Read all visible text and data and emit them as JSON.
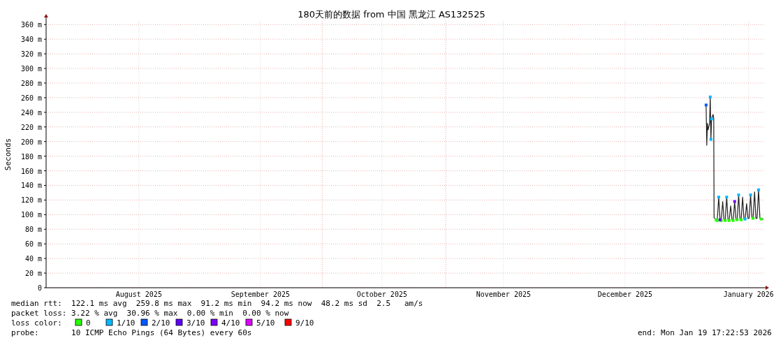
{
  "chart_data": {
    "type": "line",
    "title": "180天前的数据 from 中国 黑龙江 AS132525",
    "ylabel": "Seconds",
    "xlim": [
      "2025-07-23T17:22",
      "2026-01-19T17:22"
    ],
    "xticks": [
      {
        "value": "2025-08-16",
        "label": "August 2025"
      },
      {
        "value": "2025-09-15T12:00",
        "label": "September 2025"
      },
      {
        "value": "2025-10-16",
        "label": "October 2025"
      },
      {
        "value": "2025-11-15T12:00",
        "label": "November 2025"
      },
      {
        "value": "2025-12-16",
        "label": "December 2025"
      },
      {
        "value": "2026-01-16",
        "label": "January 2026"
      }
    ],
    "ylim": [
      0,
      365
    ],
    "yticks": [
      0,
      {
        "value": 20,
        "label": "20 m"
      },
      {
        "value": 40,
        "label": "40 m"
      },
      {
        "value": 60,
        "label": "60 m"
      },
      {
        "value": 80,
        "label": "80 m"
      },
      {
        "value": 100,
        "label": "100 m"
      },
      {
        "value": 120,
        "label": "120 m"
      },
      {
        "value": 140,
        "label": "140 m"
      },
      {
        "value": 160,
        "label": "160 m"
      },
      {
        "value": 180,
        "label": "180 m"
      },
      {
        "value": 200,
        "label": "200 m"
      },
      {
        "value": 220,
        "label": "220 m"
      },
      {
        "value": 240,
        "label": "240 m"
      },
      {
        "value": 260,
        "label": "260 m"
      },
      {
        "value": 280,
        "label": "280 m"
      },
      {
        "value": 300,
        "label": "300 m"
      },
      {
        "value": 320,
        "label": "320 m"
      },
      {
        "value": 340,
        "label": "340 m"
      },
      {
        "value": 360,
        "label": "360 m"
      }
    ],
    "grid": true,
    "legend": "bottom",
    "legend_title": "loss color:",
    "ref_lines": [
      {
        "axis": "x",
        "value": "2025-10-01",
        "color": "#f0a0a0",
        "line_style": "dotted"
      },
      {
        "axis": "x",
        "value": "2025-11-01",
        "color": "#f0a0a0",
        "line_style": "dotted"
      }
    ],
    "series": [
      {
        "color": "#202020",
        "marker": "none",
        "x": [
          "2026-01-05T08:00",
          "2026-01-05T12:00",
          "2026-01-05T16:00",
          "2026-01-05T20:00",
          "2026-01-06T05:00",
          "2026-01-06T09:00",
          "2026-01-06T13:00",
          "2026-01-06T17:00",
          "2026-01-07T02:00",
          "2026-01-07T06:00",
          "2026-01-07T08:00",
          "2026-01-07T20:00",
          "2026-01-08T03:00",
          "2026-01-08T12:00",
          "2026-01-08T20:00",
          "2026-01-09T03:00",
          "2026-01-09T12:00",
          "2026-01-09T20:00",
          "2026-01-10T03:00",
          "2026-01-10T12:00",
          "2026-01-10T20:00",
          "2026-01-11T03:00",
          "2026-01-11T12:00",
          "2026-01-11T20:00",
          "2026-01-12T03:00",
          "2026-01-12T12:00",
          "2026-01-12T20:00",
          "2026-01-13T03:00",
          "2026-01-13T12:00",
          "2026-01-13T20:00",
          "2026-01-14T03:00",
          "2026-01-14T12:00",
          "2026-01-14T20:00",
          "2026-01-15T03:00",
          "2026-01-15T12:00",
          "2026-01-15T20:00",
          "2026-01-16T03:00",
          "2026-01-16T12:00",
          "2026-01-16T20:00",
          "2026-01-17T03:00",
          "2026-01-17T12:00",
          "2026-01-17T20:00",
          "2026-01-18T03:00",
          "2026-01-18T12:00",
          "2026-01-18T20:00",
          "2026-01-19T03:00",
          "2026-01-19T17:00"
        ],
        "values": [
          250,
          195,
          225,
          216,
          225,
          261,
          203,
          231,
          237,
          232,
          96,
          93,
          92,
          124,
          93,
          92,
          118,
          93,
          92,
          124,
          93,
          92,
          112,
          93,
          92,
          118,
          93,
          93,
          127,
          94,
          93,
          124,
          94,
          94,
          115,
          95,
          95,
          127,
          95,
          95,
          131,
          95,
          95,
          134,
          95,
          94,
          94
        ]
      },
      {
        "name": "0",
        "type": "scatter",
        "color": "#26ff00",
        "marker": "square",
        "x": [
          "2026-01-07T20:00",
          "2026-01-08T03:00",
          "2026-01-09T03:00",
          "2026-01-10T03:00",
          "2026-01-11T03:00",
          "2026-01-12T03:00",
          "2026-01-13T03:00",
          "2026-01-14T03:00",
          "2026-01-17T03:00",
          "2026-01-19T03:00"
        ],
        "values": [
          93,
          92,
          92,
          92,
          92,
          92,
          93,
          93,
          95,
          94
        ]
      },
      {
        "name": "1/10",
        "type": "scatter",
        "color": "#00b8ff",
        "marker": "square",
        "x": [
          "2026-01-06T09:00",
          "2026-01-06T13:00",
          "2026-01-06T17:00",
          "2026-01-08T12:00",
          "2026-01-10T12:00",
          "2026-01-13T12:00",
          "2026-01-15T03:00",
          "2026-01-16T12:00",
          "2026-01-18T12:00"
        ],
        "values": [
          261,
          203,
          231,
          124,
          124,
          127,
          94,
          127,
          134
        ]
      },
      {
        "name": "2/10",
        "type": "scatter",
        "color": "#0059ff",
        "marker": "square",
        "x": [
          "2026-01-05T08:00"
        ],
        "values": [
          250
        ]
      },
      {
        "name": "3/10",
        "type": "scatter",
        "color": "#5e00ff",
        "marker": "square",
        "x": [
          "2026-01-08T20:00"
        ],
        "values": [
          93
        ]
      },
      {
        "name": "4/10",
        "type": "scatter",
        "color": "#7e00ff",
        "marker": "square",
        "x": [
          "2026-01-12T12:00"
        ],
        "values": [
          118
        ]
      },
      {
        "name": "5/10",
        "type": "scatter",
        "color": "#dd00ff",
        "marker": "square"
      },
      {
        "name": "9/10",
        "type": "scatter",
        "color": "#ff0000",
        "marker": "square"
      }
    ],
    "annotations": [
      "median rtt:  122.1 ms avg  259.8 ms max  91.2 ms min  94.2 ms now  48.2 ms sd  2.5   am/s",
      "packet loss: 3.22 % avg  30.96 % max  0.00 % min  0.00 % now",
      "probe:       10 ICMP Echo Pings (64 Bytes) every 60s",
      "end: Mon Jan 19 17:22:53 2026"
    ]
  }
}
